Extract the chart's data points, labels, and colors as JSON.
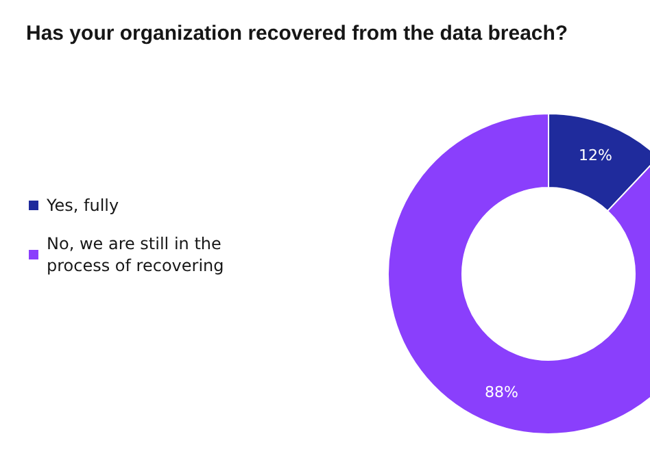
{
  "chart_data": {
    "type": "donut",
    "title": "Has your organization recovered from the data breach?",
    "categories": [
      "Yes, fully",
      "No, we are still in the process of recovering"
    ],
    "values": [
      12,
      88
    ],
    "colors": [
      "#1f2b9c",
      "#8a3ffc"
    ],
    "value_labels": [
      "12%",
      "88%"
    ],
    "legend": "left"
  }
}
